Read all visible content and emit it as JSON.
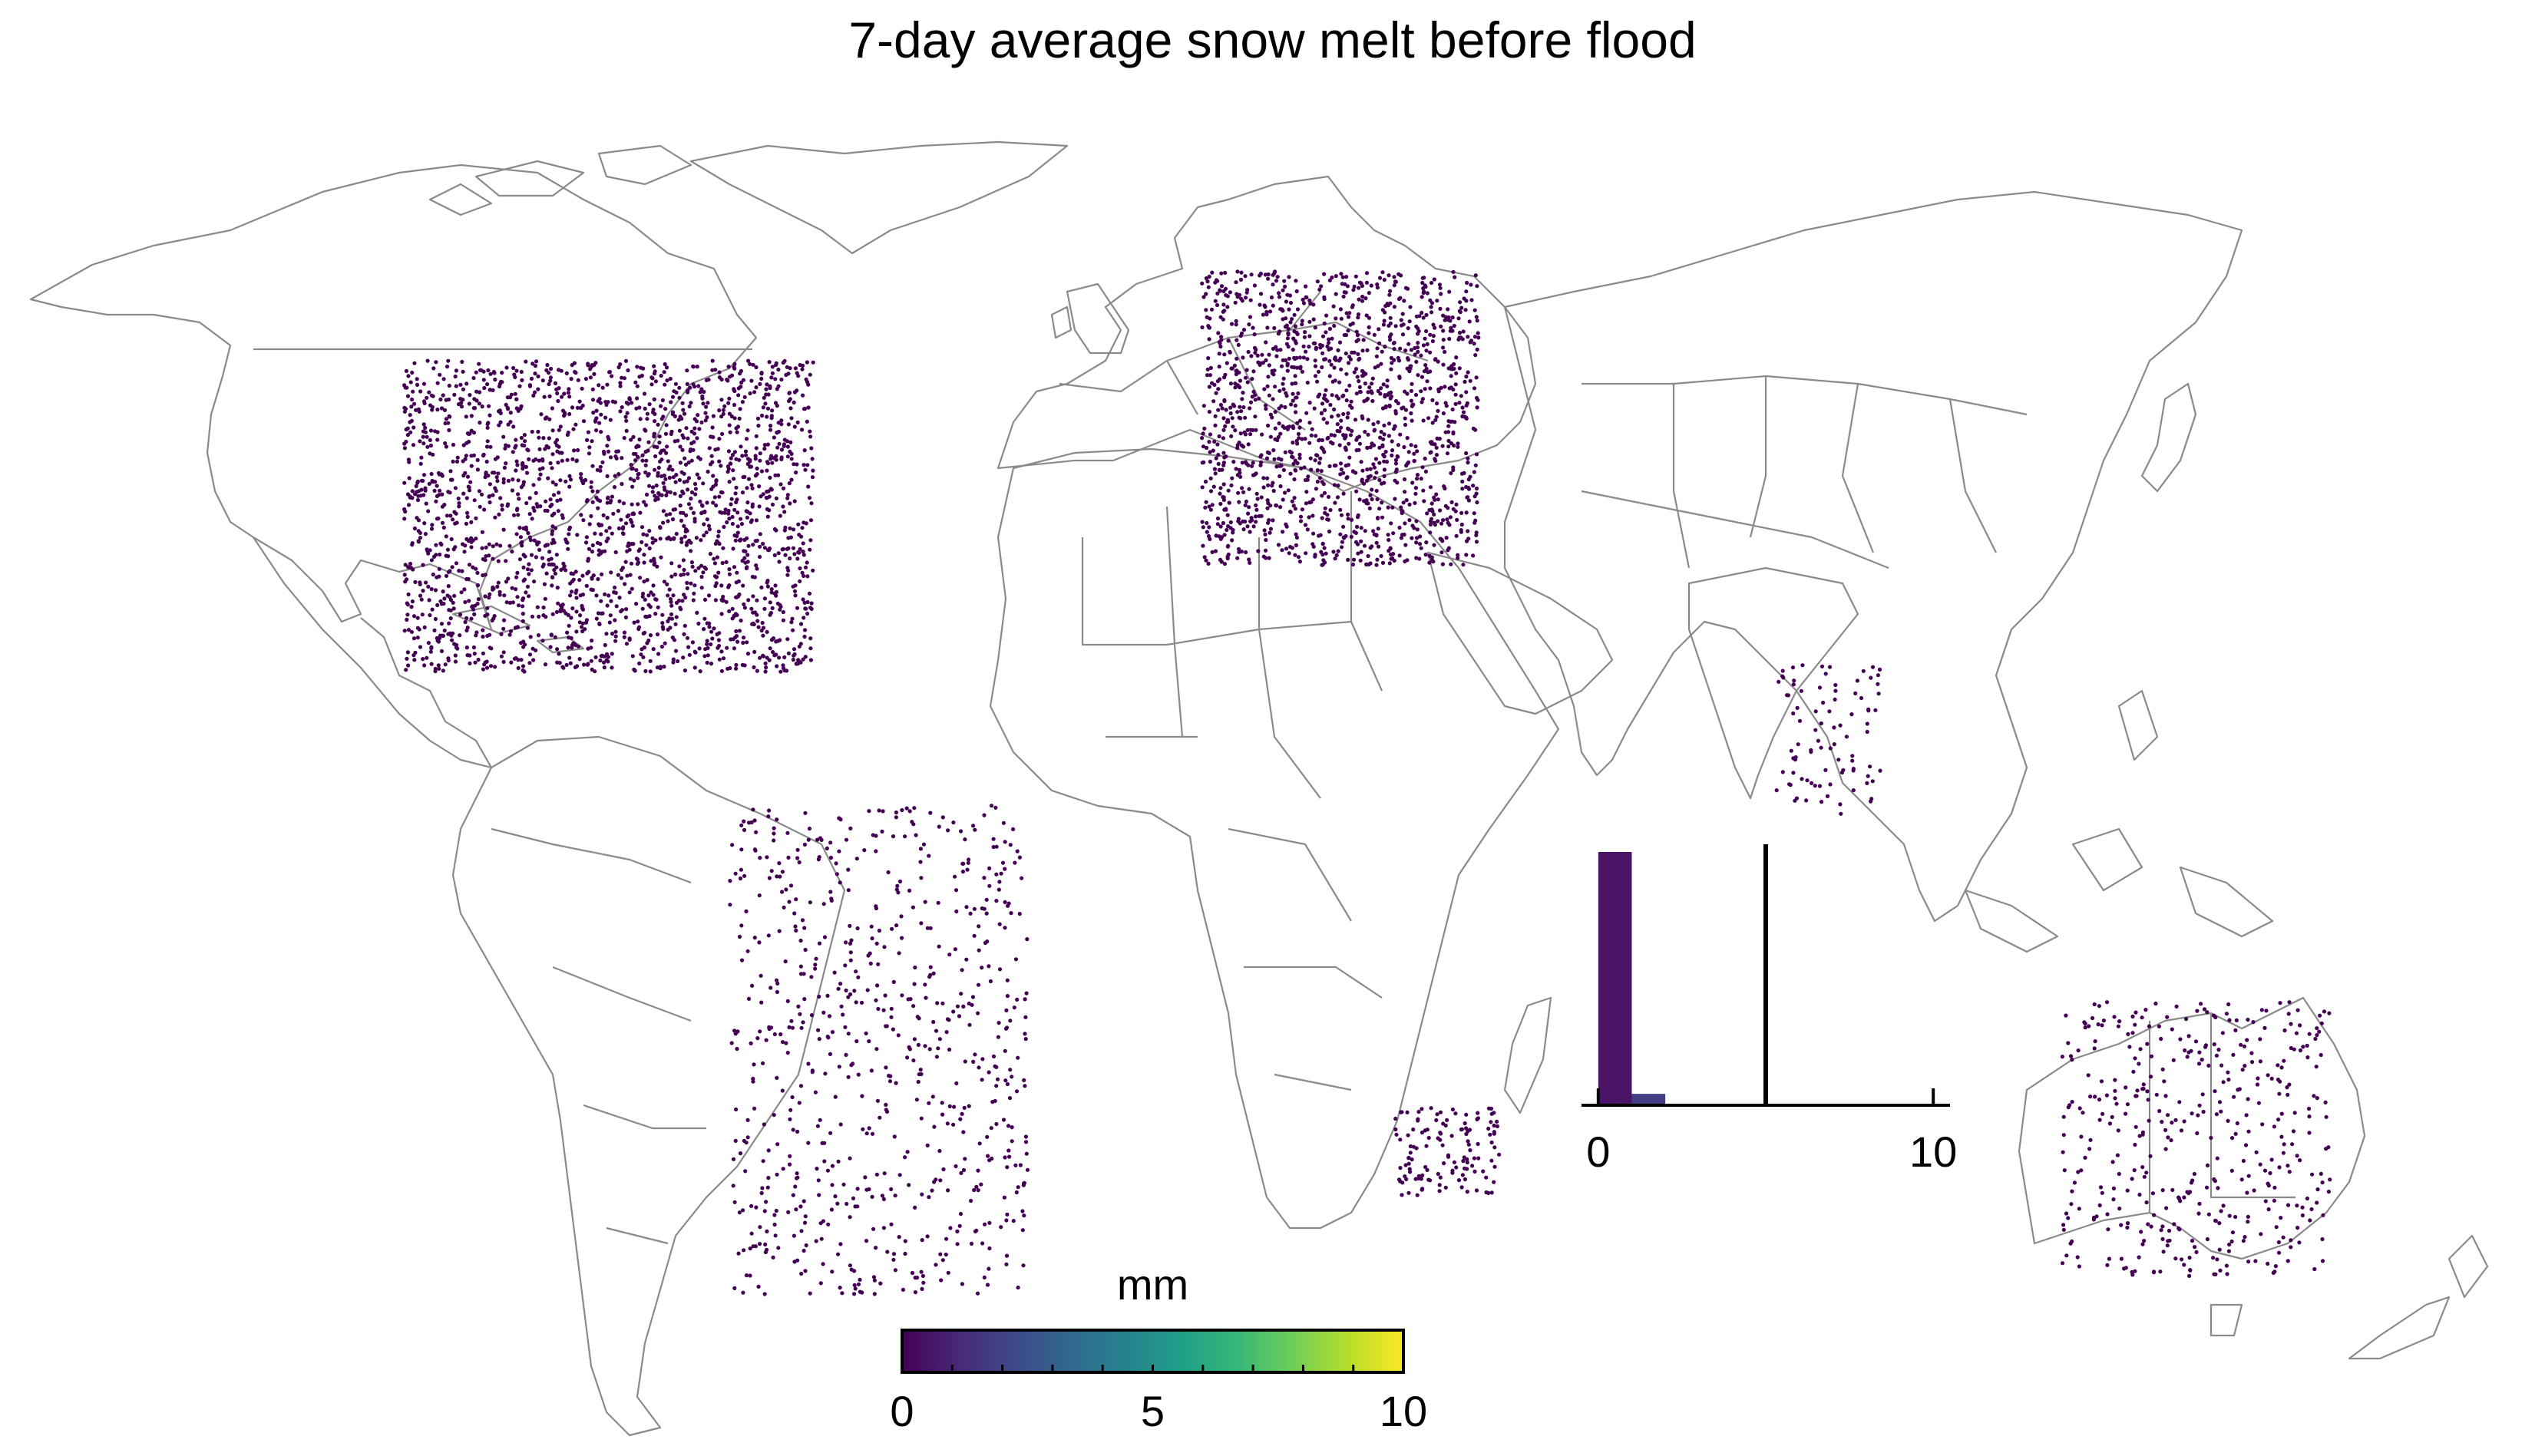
{
  "title": "7-day average snow melt before flood",
  "colorbar": {
    "label": "mm",
    "ticks": [
      0,
      5,
      10
    ],
    "tick_labels": [
      "0",
      "5",
      "10"
    ],
    "range": [
      0,
      10
    ],
    "palette": [
      "#440154",
      "#482878",
      "#3e4989",
      "#31688e",
      "#26828e",
      "#1f9e89",
      "#35b779",
      "#6ece58",
      "#b5de2b",
      "#fde725"
    ]
  },
  "inset_histogram": {
    "x_ticks": [
      0,
      10
    ],
    "x_tick_labels": [
      "0",
      "10"
    ],
    "xlim": [
      -0.5,
      10.5
    ],
    "bin_width": 1,
    "bins": [
      {
        "start": 0,
        "end": 1,
        "relative_count": 1.0,
        "color": "#4a1466"
      },
      {
        "start": 1,
        "end": 2,
        "relative_count": 0.045,
        "color": "#433d84"
      }
    ],
    "reference_line_x": 5,
    "reference_line_color": "#000000"
  },
  "chart_data": {
    "type": "scatter",
    "title": "7-day average snow melt before flood",
    "value_label": "mm",
    "value_range": [
      0,
      10
    ],
    "points_color": "#440154",
    "regions_with_stations": [
      {
        "name": "North America",
        "lon_range": [
          -125,
          -66
        ],
        "lat_range": [
          25,
          60
        ]
      },
      {
        "name": "Europe",
        "lon_range": [
          -10,
          30
        ],
        "lat_range": [
          37,
          70
        ]
      },
      {
        "name": "South America",
        "lon_range": [
          -78,
          -35
        ],
        "lat_range": [
          -45,
          10
        ]
      },
      {
        "name": "India",
        "lon_range": [
          73,
          88
        ],
        "lat_range": [
          9,
          26
        ]
      },
      {
        "name": "Southern Africa",
        "lon_range": [
          18,
          33
        ],
        "lat_range": [
          -34,
          -24
        ]
      },
      {
        "name": "Australia",
        "lon_range": [
          114,
          153
        ],
        "lat_range": [
          -43,
          -12
        ]
      }
    ]
  }
}
